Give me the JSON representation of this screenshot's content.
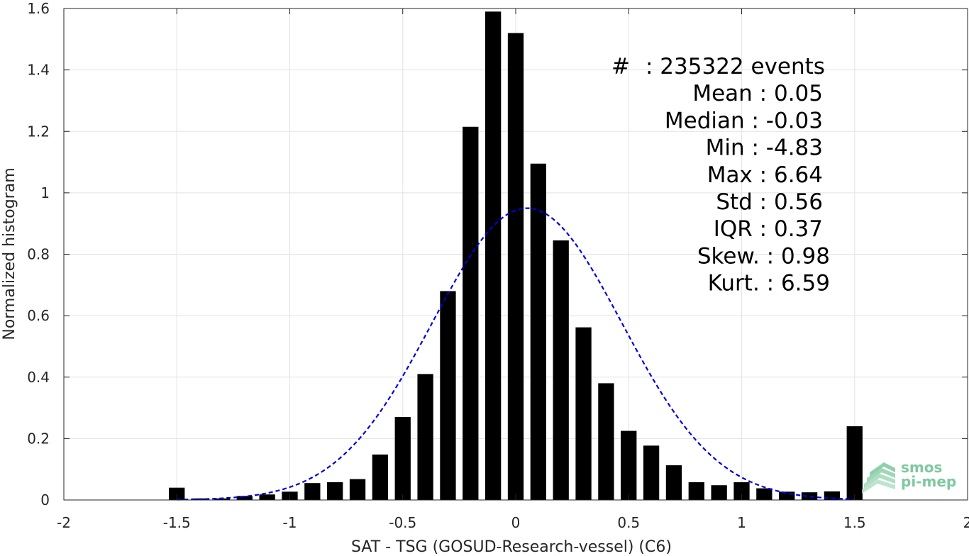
{
  "chart_data": {
    "type": "bar",
    "xlabel": "SAT - TSG (GOSUD-Research-vessel) (C6)",
    "ylabel": "Normalized histogram",
    "xlim": [
      -2,
      2
    ],
    "ylim": [
      0,
      1.6
    ],
    "x_ticks": [
      -2,
      -1.5,
      -1,
      -0.5,
      0,
      0.5,
      1,
      1.5,
      2
    ],
    "x_tick_labels": [
      "-2",
      "-1.5",
      "-1",
      "-0.5",
      "0",
      "0.5",
      "1",
      "1.5",
      "2"
    ],
    "y_ticks": [
      0,
      0.2,
      0.4,
      0.6,
      0.8,
      1,
      1.2,
      1.4,
      1.6
    ],
    "y_tick_labels": [
      "0",
      "0.2",
      "0.4",
      "0.6",
      "0.8",
      "1",
      "1.2",
      "1.4",
      "1.6"
    ],
    "grid": true,
    "bar_color": "#000000",
    "bar_width": 0.07,
    "bins": [
      -1.5,
      -1.4,
      -1.3,
      -1.2,
      -1.1,
      -1.0,
      -0.9,
      -0.8,
      -0.7,
      -0.6,
      -0.5,
      -0.4,
      -0.3,
      -0.2,
      -0.1,
      0.0,
      0.1,
      0.2,
      0.3,
      0.4,
      0.5,
      0.6,
      0.7,
      0.8,
      0.9,
      1.0,
      1.1,
      1.2,
      1.3,
      1.4,
      1.5
    ],
    "values": [
      0.04,
      0.005,
      0.005,
      0.013,
      0.018,
      0.027,
      0.055,
      0.058,
      0.068,
      0.148,
      0.27,
      0.41,
      0.68,
      1.215,
      1.59,
      1.52,
      1.095,
      0.845,
      0.562,
      0.38,
      0.225,
      0.177,
      0.113,
      0.058,
      0.048,
      0.058,
      0.038,
      0.027,
      0.025,
      0.028,
      0.24
    ],
    "fit_curve": {
      "type": "normal",
      "mean": 0.05,
      "std": 0.42,
      "peak": 0.95,
      "x_range": [
        -1.5,
        1.5
      ],
      "color": "#0000dd",
      "style": "dashed"
    },
    "annotations": [
      {
        "label": "#",
        "value": ": 235322 events"
      },
      {
        "label": "Mean",
        "value": ": 0.05"
      },
      {
        "label": "Median",
        "value": ": -0.03"
      },
      {
        "label": "Min",
        "value": ": -4.83"
      },
      {
        "label": "Max",
        "value": ": 6.64"
      },
      {
        "label": "Std",
        "value": ": 0.56"
      },
      {
        "label": "IQR",
        "value": ": 0.37"
      },
      {
        "label": "Skew.",
        "value": ": 0.98"
      },
      {
        "label": "Kurt.",
        "value": ": 6.59"
      }
    ]
  },
  "logo": {
    "line1": "smos",
    "line2": "pi-mep",
    "color": "#7fc9a0"
  }
}
